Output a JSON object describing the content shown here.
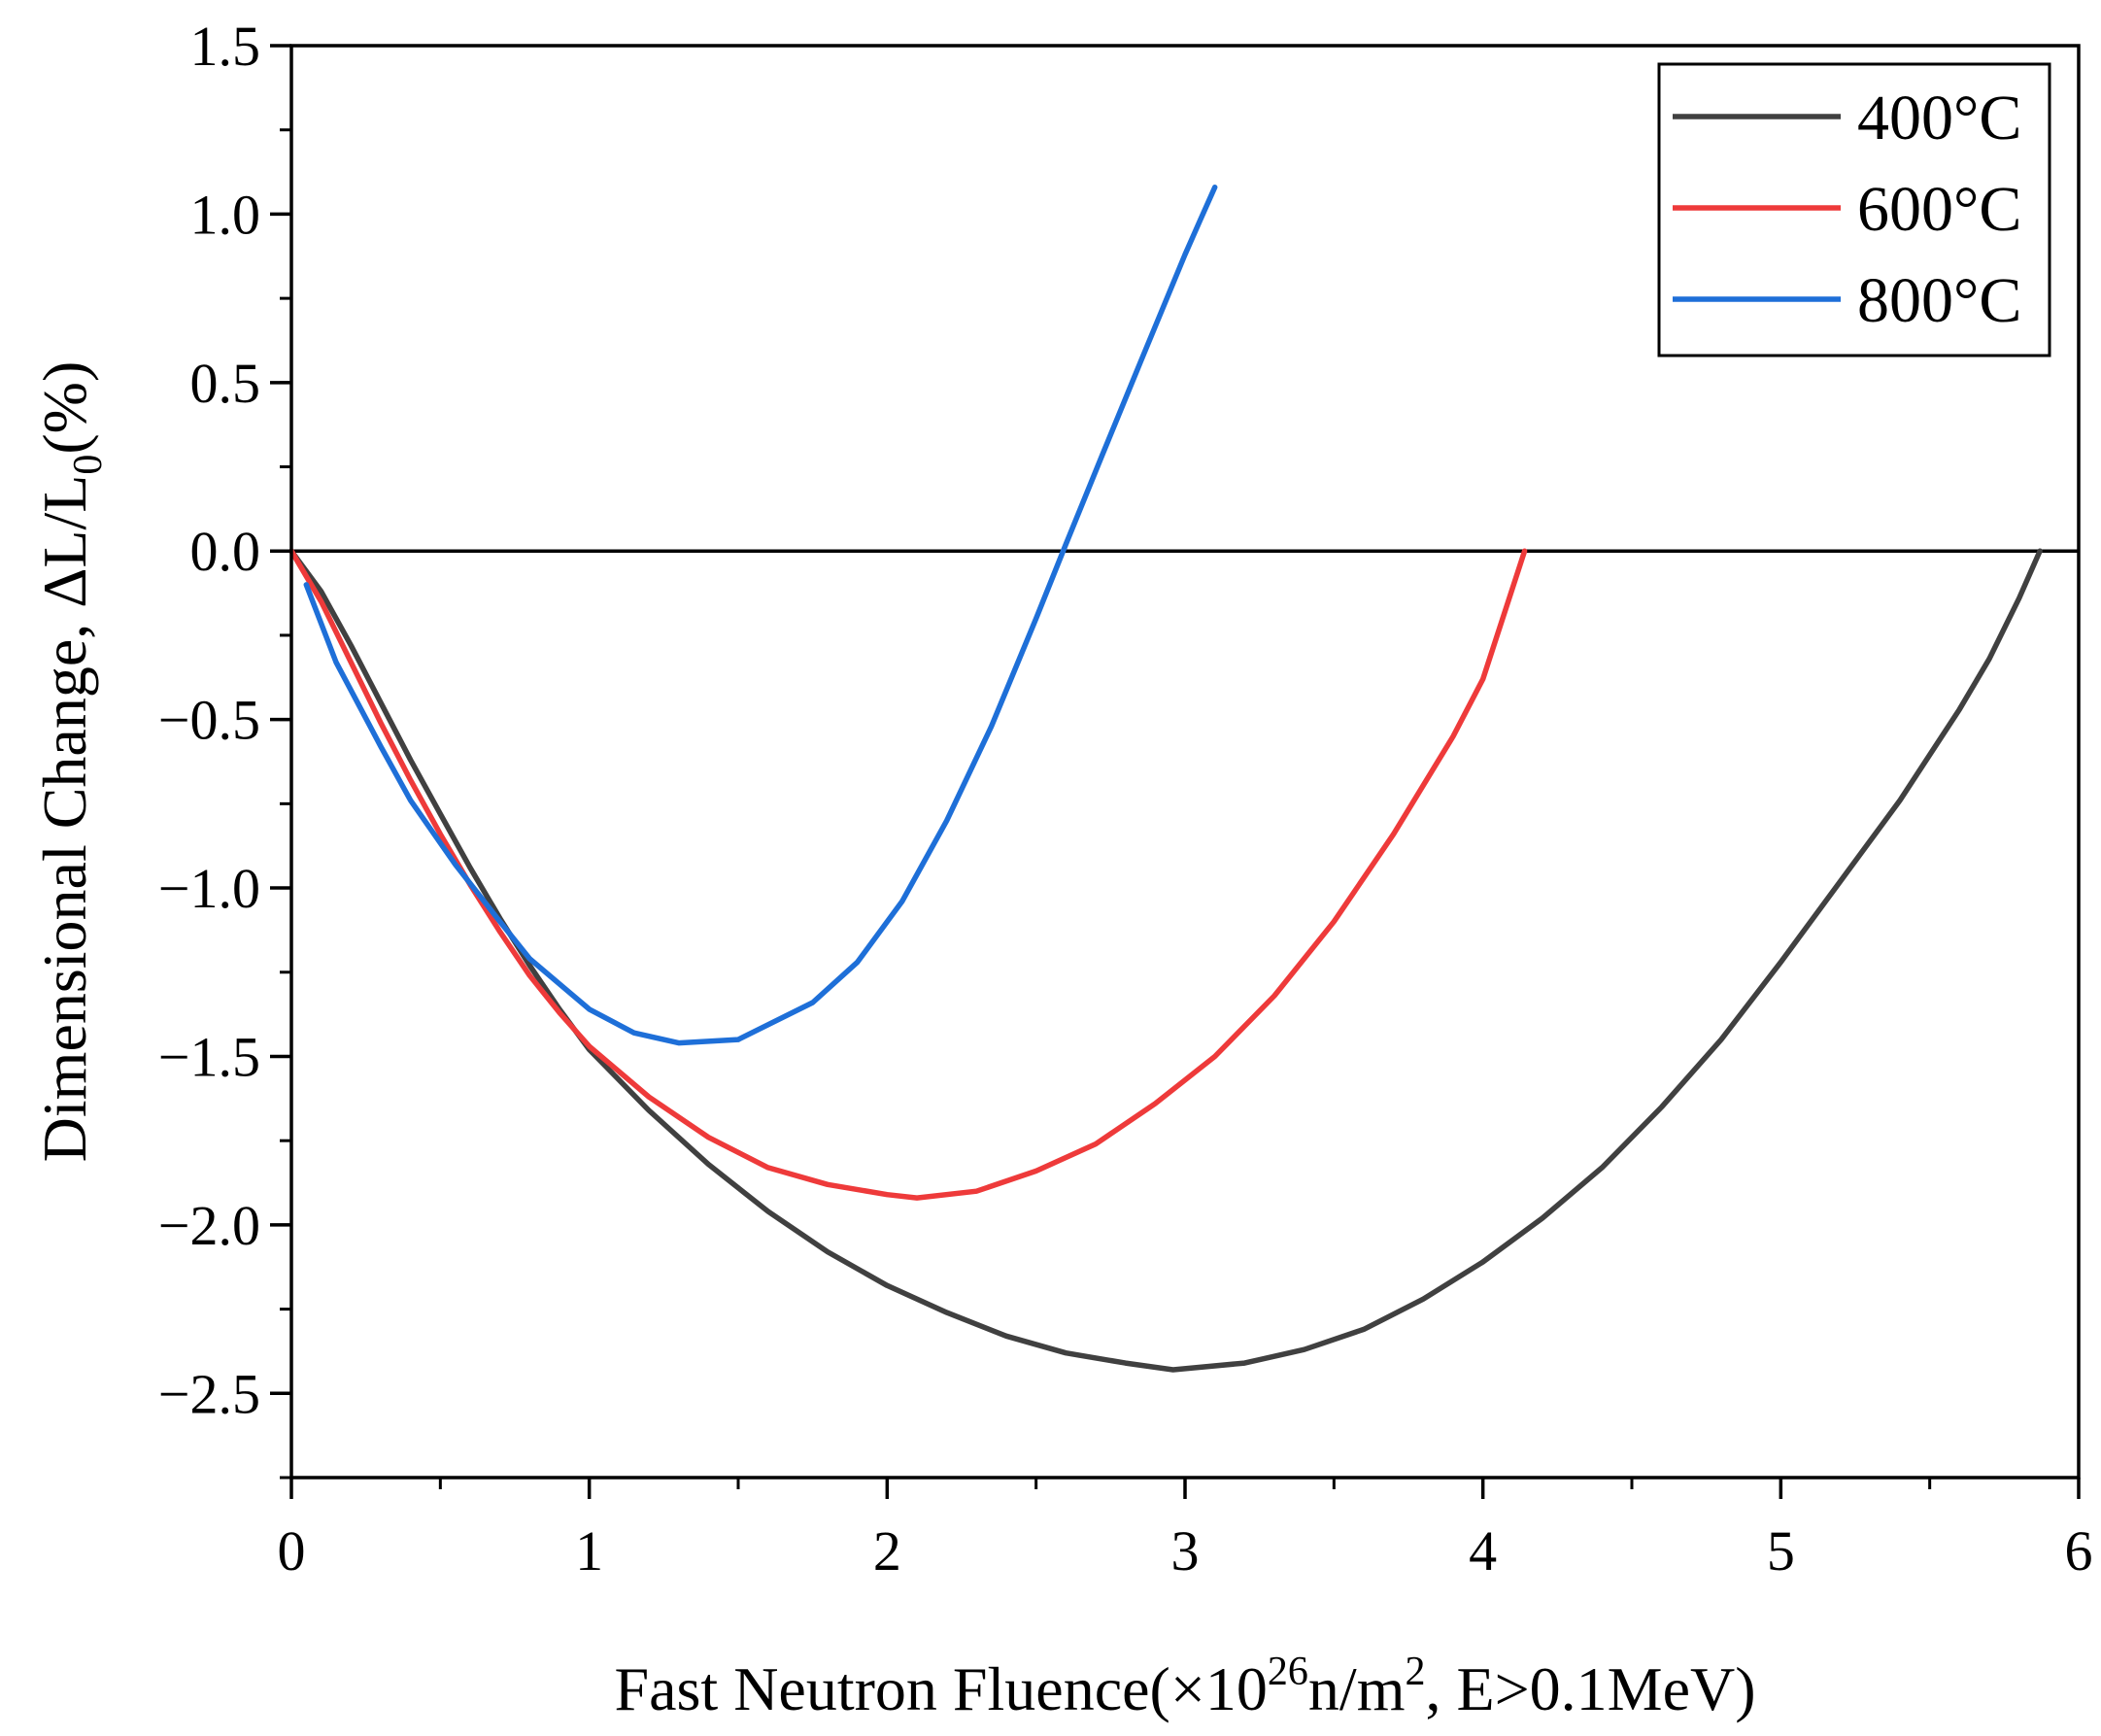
{
  "chart_data": {
    "type": "line",
    "title": "",
    "xlabel": {
      "prefix": "Fast Neutron Fluence(×10",
      "sup1": "26",
      "mid": "n/m",
      "sup2": "2",
      "suffix": ", E>0.1MeV)"
    },
    "ylabel": {
      "prefix": "Dimensional Change, ΔL/L",
      "sub": "0",
      "suffix": "(%)"
    },
    "xlim": [
      0,
      6
    ],
    "ylim": [
      -2.75,
      1.5
    ],
    "xticks": [
      0,
      1,
      2,
      3,
      4,
      5,
      6
    ],
    "xtick_labels": [
      "0",
      "1",
      "2",
      "3",
      "4",
      "5",
      "6"
    ],
    "yticks": [
      1.5,
      1.0,
      0.5,
      0.0,
      -0.5,
      -1.0,
      -1.5,
      -2.0,
      -2.5
    ],
    "ytick_labels": [
      "1.5",
      "1.0",
      "0.5",
      "0.0",
      "−0.5",
      "−1.0",
      "−1.5",
      "−2.0",
      "−2.5"
    ],
    "zero_line": 0.0,
    "legend_position": "top-right",
    "series": [
      {
        "name": "400°C",
        "color": "#404040",
        "points": [
          [
            0,
            0
          ],
          [
            0.1,
            -0.12
          ],
          [
            0.2,
            -0.28
          ],
          [
            0.3,
            -0.45
          ],
          [
            0.4,
            -0.62
          ],
          [
            0.5,
            -0.78
          ],
          [
            0.6,
            -0.94
          ],
          [
            0.7,
            -1.09
          ],
          [
            0.8,
            -1.23
          ],
          [
            0.9,
            -1.36
          ],
          [
            1.0,
            -1.48
          ],
          [
            1.2,
            -1.66
          ],
          [
            1.4,
            -1.82
          ],
          [
            1.6,
            -1.96
          ],
          [
            1.8,
            -2.08
          ],
          [
            2.0,
            -2.18
          ],
          [
            2.2,
            -2.26
          ],
          [
            2.4,
            -2.33
          ],
          [
            2.6,
            -2.38
          ],
          [
            2.8,
            -2.41
          ],
          [
            2.96,
            -2.43
          ],
          [
            3.2,
            -2.41
          ],
          [
            3.4,
            -2.37
          ],
          [
            3.6,
            -2.31
          ],
          [
            3.8,
            -2.22
          ],
          [
            4.0,
            -2.11
          ],
          [
            4.2,
            -1.98
          ],
          [
            4.4,
            -1.83
          ],
          [
            4.6,
            -1.65
          ],
          [
            4.8,
            -1.45
          ],
          [
            5.0,
            -1.22
          ],
          [
            5.2,
            -0.98
          ],
          [
            5.4,
            -0.74
          ],
          [
            5.6,
            -0.47
          ],
          [
            5.7,
            -0.32
          ],
          [
            5.8,
            -0.14
          ],
          [
            5.87,
            0.0
          ]
        ]
      },
      {
        "name": "600°C",
        "color": "#ee3a3a",
        "points": [
          [
            0,
            0
          ],
          [
            0.1,
            -0.15
          ],
          [
            0.2,
            -0.33
          ],
          [
            0.3,
            -0.51
          ],
          [
            0.4,
            -0.68
          ],
          [
            0.5,
            -0.84
          ],
          [
            0.6,
            -0.99
          ],
          [
            0.7,
            -1.13
          ],
          [
            0.8,
            -1.26
          ],
          [
            0.9,
            -1.37
          ],
          [
            1.0,
            -1.47
          ],
          [
            1.2,
            -1.62
          ],
          [
            1.4,
            -1.74
          ],
          [
            1.6,
            -1.83
          ],
          [
            1.8,
            -1.88
          ],
          [
            2.0,
            -1.91
          ],
          [
            2.1,
            -1.92
          ],
          [
            2.3,
            -1.9
          ],
          [
            2.5,
            -1.84
          ],
          [
            2.7,
            -1.76
          ],
          [
            2.9,
            -1.64
          ],
          [
            3.1,
            -1.5
          ],
          [
            3.3,
            -1.32
          ],
          [
            3.5,
            -1.1
          ],
          [
            3.7,
            -0.84
          ],
          [
            3.9,
            -0.55
          ],
          [
            4.0,
            -0.38
          ],
          [
            4.14,
            0.0
          ]
        ]
      },
      {
        "name": "800°C",
        "color": "#1e6fd8",
        "points": [
          [
            0.05,
            -0.1
          ],
          [
            0.15,
            -0.33
          ],
          [
            0.3,
            -0.58
          ],
          [
            0.4,
            -0.74
          ],
          [
            0.55,
            -0.93
          ],
          [
            0.7,
            -1.1
          ],
          [
            0.8,
            -1.21
          ],
          [
            1.0,
            -1.36
          ],
          [
            1.15,
            -1.43
          ],
          [
            1.3,
            -1.46
          ],
          [
            1.5,
            -1.45
          ],
          [
            1.75,
            -1.34
          ],
          [
            1.9,
            -1.22
          ],
          [
            2.05,
            -1.04
          ],
          [
            2.2,
            -0.8
          ],
          [
            2.35,
            -0.52
          ],
          [
            2.5,
            -0.2
          ],
          [
            2.6,
            0.02
          ],
          [
            2.72,
            0.28
          ],
          [
            2.85,
            0.56
          ],
          [
            3.0,
            0.88
          ],
          [
            3.05,
            0.98
          ],
          [
            3.1,
            1.08
          ]
        ]
      }
    ]
  }
}
